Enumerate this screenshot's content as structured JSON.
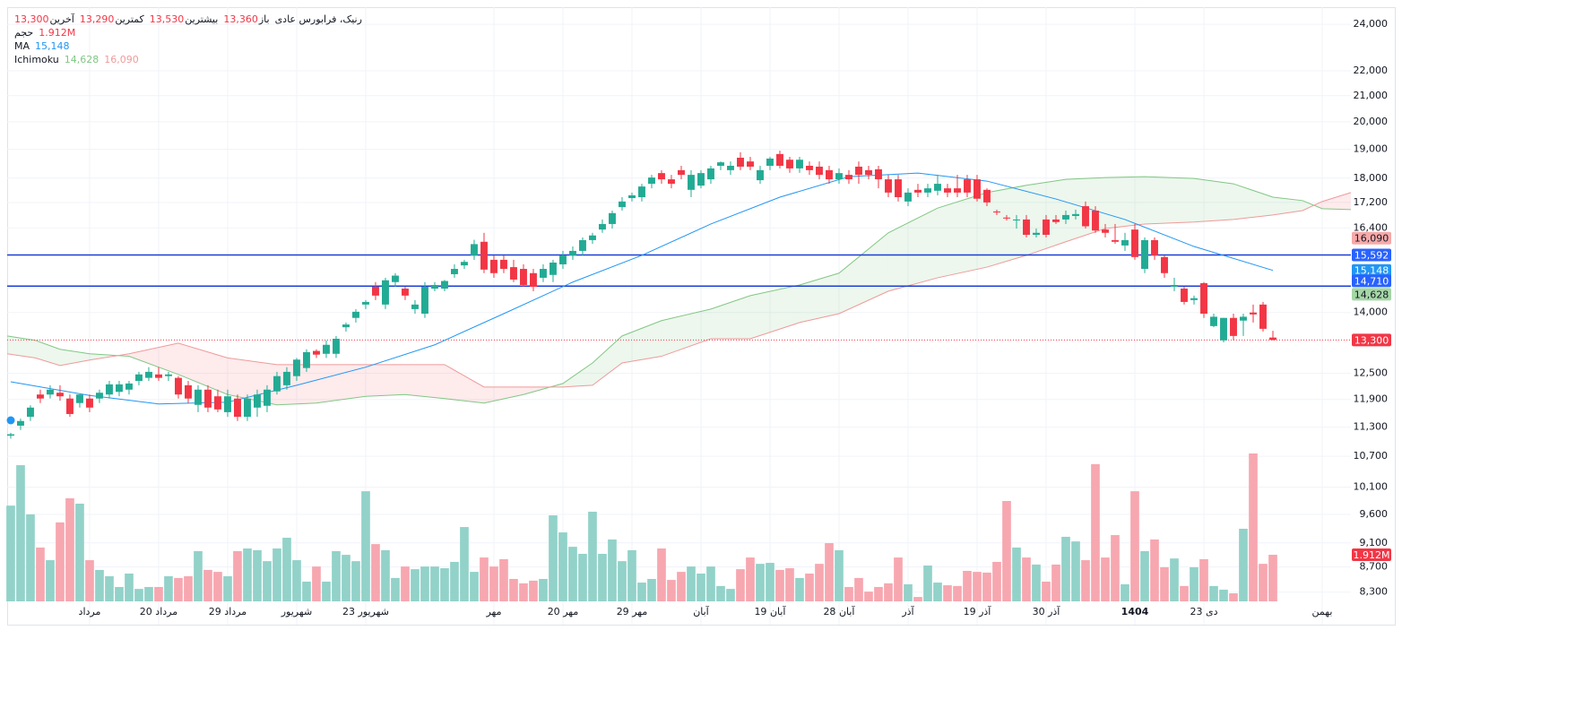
{
  "chart_data": {
    "type": "candlestick",
    "symbol": "رنیک، فرابورس عادی",
    "ohlc_header": [
      {
        "name": "باز",
        "value": 13360,
        "label": "13,360"
      },
      {
        "name": "بیشترین",
        "value": 13530,
        "label": "13,530"
      },
      {
        "name": "کمترین",
        "value": 13290,
        "label": "13,290"
      },
      {
        "name": "آخرین",
        "value": 13300,
        "label": "13,300"
      }
    ],
    "up_color": "#22ab94",
    "down_color": "#f23645",
    "open": [
      11120,
      11330,
      11520,
      12010,
      12010,
      12050,
      11920,
      11820,
      11920,
      11920,
      12010,
      12070,
      12120,
      12320,
      12390,
      12470,
      12430,
      12390,
      12220,
      11780,
      12120,
      11970,
      11620,
      11920,
      11520,
      11720,
      11760,
      12080,
      12220,
      12430,
      12620,
      13030,
      12960,
      12960,
      13620,
      13860,
      14210,
      14690,
      14210,
      14820,
      14640,
      14090,
      13970,
      14640,
      14640,
      15040,
      15290,
      15580,
      15980,
      15450,
      15450,
      15240,
      15190,
      15070,
      14940,
      15020,
      15320,
      15580,
      15710,
      16030,
      16350,
      16520,
      17050,
      17340,
      17370,
      17810,
      18170,
      17960,
      18270,
      17610,
      17750,
      17960,
      18420,
      18270,
      18700,
      18570,
      17930,
      18420,
      18830,
      18630,
      18330,
      18420,
      18390,
      18270,
      17960,
      18110,
      18390,
      18270,
      18300,
      17960,
      17960,
      17230,
      17610,
      17520,
      17580,
      17660,
      17660,
      17960,
      17960,
      17610,
      16910,
      16720,
      16630,
      16660,
      16190,
      16660,
      16660,
      16660,
      16770,
      17080,
      16940,
      16350,
      16030,
      15870,
      16350,
      15190,
      16030,
      15530,
      14690,
      14640,
      14330,
      14790,
      13650,
      13290,
      13860,
      13790,
      14000,
      14210,
      13360
    ],
    "high": [
      11180,
      11480,
      11770,
      12120,
      12220,
      12220,
      12010,
      12010,
      12010,
      12120,
      12320,
      12320,
      12320,
      12530,
      12640,
      12640,
      12530,
      12430,
      12320,
      12220,
      12220,
      12120,
      12120,
      12010,
      12010,
      12120,
      12220,
      12530,
      12640,
      12860,
      13070,
      13070,
      13290,
      13400,
      13740,
      14090,
      14330,
      14820,
      14940,
      15070,
      14690,
      14330,
      14820,
      14820,
      14880,
      15320,
      15450,
      16040,
      16250,
      15580,
      15580,
      15450,
      15320,
      15190,
      15320,
      15450,
      15710,
      15840,
      16110,
      16250,
      16660,
      16940,
      17370,
      17520,
      17810,
      18110,
      18270,
      18110,
      18420,
      18270,
      18270,
      18420,
      18570,
      18570,
      18890,
      18730,
      18420,
      18730,
      18950,
      18730,
      18730,
      18570,
      18570,
      18420,
      18330,
      18270,
      18570,
      18420,
      18420,
      18110,
      18110,
      17660,
      17810,
      17810,
      18110,
      17810,
      18110,
      18110,
      18110,
      17660,
      16970,
      16800,
      16800,
      16800,
      16380,
      16800,
      16800,
      16940,
      16970,
      17230,
      17080,
      16520,
      16520,
      16250,
      16520,
      16110,
      16110,
      15580,
      14940,
      14690,
      14450,
      14820,
      13970,
      13860,
      13970,
      13970,
      14210,
      14280,
      13530
    ],
    "low": [
      11060,
      11240,
      11430,
      11820,
      11920,
      11870,
      11520,
      11720,
      11620,
      11820,
      11920,
      11970,
      12010,
      12220,
      12320,
      12320,
      12320,
      11920,
      11820,
      11620,
      11620,
      11620,
      11520,
      11430,
      11430,
      11520,
      11620,
      12010,
      12120,
      12320,
      12530,
      12860,
      12860,
      12860,
      13510,
      13740,
      14090,
      14330,
      14090,
      14690,
      14330,
      13970,
      13860,
      14570,
      14570,
      14940,
      15190,
      15450,
      15070,
      14940,
      15070,
      14820,
      14690,
      14570,
      14820,
      14820,
      15190,
      15450,
      15580,
      15920,
      16250,
      16380,
      16940,
      17230,
      17230,
      17660,
      17810,
      17660,
      17960,
      17370,
      17660,
      17810,
      18270,
      18110,
      18270,
      18270,
      17810,
      18270,
      18330,
      18180,
      18180,
      18110,
      17960,
      17810,
      17810,
      17810,
      17810,
      17960,
      17660,
      17370,
      17230,
      17080,
      17370,
      17370,
      17430,
      17370,
      17370,
      17370,
      17230,
      17080,
      16800,
      16630,
      16380,
      16110,
      16110,
      16110,
      16520,
      16520,
      16660,
      16380,
      16250,
      16110,
      15920,
      15710,
      15450,
      15070,
      15450,
      14940,
      14570,
      14210,
      14210,
      13860,
      13620,
      13240,
      13290,
      13400,
      13740,
      13510,
      13290
    ],
    "close": [
      11150,
      11430,
      11720,
      11920,
      12120,
      11970,
      11580,
      12010,
      11720,
      12050,
      12240,
      12240,
      12260,
      12470,
      12530,
      12390,
      12470,
      12010,
      11920,
      12120,
      11720,
      11680,
      11970,
      11520,
      11920,
      12010,
      12120,
      12430,
      12530,
      12820,
      13000,
      12940,
      13180,
      13330,
      13690,
      14020,
      14280,
      14450,
      14870,
      15000,
      14450,
      14210,
      14690,
      14740,
      14850,
      15190,
      15390,
      15910,
      15170,
      15070,
      15190,
      14890,
      14740,
      14690,
      15190,
      15370,
      15580,
      15710,
      16030,
      16170,
      16520,
      16860,
      17230,
      17430,
      17720,
      18020,
      17960,
      17810,
      18110,
      18110,
      18170,
      18330,
      18540,
      18420,
      18390,
      18390,
      18270,
      18670,
      18420,
      18330,
      18630,
      18270,
      18110,
      17960,
      18170,
      17960,
      18110,
      18110,
      17960,
      17520,
      17370,
      17520,
      17520,
      17660,
      17810,
      17520,
      17520,
      17520,
      17320,
      17200,
      16880,
      16690,
      16660,
      16190,
      16250,
      16190,
      16580,
      16800,
      16830,
      16450,
      16320,
      16250,
      15980,
      16030,
      15530,
      16030,
      15580,
      15070,
      14740,
      14280,
      14380,
      13970,
      13890,
      13860,
      13400,
      13890,
      13950,
      13580,
      13300
    ],
    "volume": {
      "name": "حجم",
      "last_label": "1.912M",
      "up_color": "#92d2c9",
      "down_color": "#f7a7b0",
      "values": [
        3.93,
        5.59,
        3.57,
        2.21,
        1.69,
        3.24,
        4.23,
        4.01,
        1.69,
        1.29,
        1.03,
        0.59,
        1.14,
        0.51,
        0.59,
        0.59,
        1.03,
        0.96,
        1.03,
        2.06,
        1.29,
        1.21,
        1.03,
        2.06,
        2.17,
        2.1,
        1.65,
        2.17,
        2.61,
        1.69,
        0.81,
        1.43,
        0.81,
        2.06,
        1.91,
        1.65,
        4.52,
        2.35,
        2.1,
        0.96,
        1.43,
        1.32,
        1.43,
        1.43,
        1.36,
        1.62,
        3.05,
        1.21,
        1.8,
        1.43,
        1.73,
        0.92,
        0.74,
        0.85,
        0.92,
        3.53,
        2.83,
        2.24,
        1.95,
        3.68,
        1.95,
        2.54,
        1.65,
        2.1,
        0.77,
        0.92,
        2.17,
        0.88,
        1.21,
        1.43,
        1.14,
        1.43,
        0.63,
        0.51,
        1.32,
        1.8,
        1.54,
        1.58,
        1.29,
        1.36,
        0.96,
        1.14,
        1.54,
        2.39,
        2.1,
        0.59,
        0.96,
        0.4,
        0.59,
        0.74,
        1.8,
        0.7,
        0.18,
        1.47,
        0.77,
        0.66,
        0.63,
        1.25,
        1.21,
        1.18,
        1.62,
        4.12,
        2.21,
        1.8,
        1.51,
        0.81,
        1.51,
        2.65,
        2.46,
        1.69,
        5.63,
        1.8,
        2.72,
        0.7,
        4.52,
        2.06,
        2.54,
        1.4,
        1.76,
        0.63,
        1.4,
        1.73,
        0.63,
        0.48,
        0.33,
        2.98,
        6.07,
        1.54,
        1.912
      ]
    },
    "ma": {
      "name": "MA",
      "color": "#2196f3",
      "last": {
        "value": 15148,
        "label": "15,148"
      },
      "x": [
        0,
        8,
        15,
        22,
        29,
        36,
        43,
        50,
        57,
        64,
        71,
        78,
        85,
        92,
        99,
        106,
        113,
        120,
        128
      ],
      "values": [
        12300,
        11990,
        11800,
        11840,
        12220,
        12640,
        13180,
        13970,
        14820,
        15580,
        16520,
        17370,
        18050,
        18170,
        17900,
        17310,
        16660,
        15840,
        15148
      ]
    },
    "ichimoku": {
      "name": "Ichimoku",
      "up_fill": "rgba(76,175,80,0.1)",
      "down_fill": "rgba(242,54,69,0.1)",
      "x": [
        -0.36,
        2.5,
        5,
        8,
        12,
        17,
        22,
        27,
        31,
        36,
        40,
        44,
        48,
        52,
        56,
        59,
        62,
        66,
        71,
        75,
        80,
        84,
        89,
        94,
        99,
        103,
        107,
        111,
        115,
        120,
        124,
        128,
        131,
        133,
        135.91
      ],
      "span_a": {
        "color": "#81c784",
        "badge_color": "#a5d6a7",
        "last": {
          "value": 14628,
          "label": "14,628"
        },
        "values": [
          13400,
          13290,
          13070,
          12960,
          12900,
          12470,
          12010,
          11780,
          11820,
          11970,
          12010,
          11920,
          11820,
          12010,
          12260,
          12740,
          13400,
          13790,
          14090,
          14450,
          14740,
          15070,
          16250,
          17020,
          17520,
          17760,
          17960,
          18020,
          18050,
          17990,
          17810,
          17370,
          17260,
          17000,
          16970
        ]
      },
      "span_b": {
        "color": "#ef9a9a",
        "badge_color": "#f7a9a9",
        "last": {
          "value": 16090,
          "label": "16,090"
        },
        "values": [
          12960,
          12860,
          12680,
          12810,
          12960,
          13220,
          12860,
          12700,
          12700,
          12700,
          12700,
          12700,
          12180,
          12180,
          12180,
          12220,
          12740,
          12900,
          13330,
          13330,
          13740,
          13970,
          14570,
          14940,
          15240,
          15580,
          15980,
          16380,
          16520,
          16580,
          16660,
          16800,
          16940,
          17230,
          17520
        ]
      }
    },
    "hlines": {
      "color": "#1a3fd6",
      "badge_color": "#2962ff",
      "lines": [
        {
          "value": 15592,
          "label": "15,592"
        },
        {
          "value": 14710,
          "label": "14,710"
        }
      ]
    },
    "log_scale": true,
    "grid": true,
    "xlim": [
      -0.36,
      135.91
    ],
    "xticks": [
      {
        "value": 8,
        "label": "مرداد"
      },
      {
        "value": 15,
        "label": "20 مرداد"
      },
      {
        "value": 22,
        "label": "29 مرداد"
      },
      {
        "value": 29,
        "label": "شهریور"
      },
      {
        "value": 36,
        "label": "23 شهریور"
      },
      {
        "value": 49,
        "label": "مهر"
      },
      {
        "value": 56,
        "label": "20 مهر"
      },
      {
        "value": 63,
        "label": "29 مهر"
      },
      {
        "value": 70,
        "label": "آبان"
      },
      {
        "value": 77,
        "label": "19 آبان"
      },
      {
        "value": 84,
        "label": "28 آبان"
      },
      {
        "value": 91,
        "label": "آذر"
      },
      {
        "value": 98,
        "label": "19 آذر"
      },
      {
        "value": 105,
        "label": "30 آذر"
      },
      {
        "value": 114,
        "label": "1404",
        "bold": true
      },
      {
        "value": 121,
        "label": "23 دی"
      },
      {
        "value": 133,
        "label": "بهمن"
      }
    ],
    "ylim": [
      7810,
      24780
    ],
    "yticks": [
      {
        "value": 24000,
        "label": "24,000"
      },
      {
        "value": 22000,
        "label": "22,000"
      },
      {
        "value": 21000,
        "label": "21,000"
      },
      {
        "value": 20000,
        "label": "20,000"
      },
      {
        "value": 19000,
        "label": "19,000"
      },
      {
        "value": 18000,
        "label": "18,000"
      },
      {
        "value": 17200,
        "label": "17,200"
      },
      {
        "value": 16400,
        "label": "16,400"
      },
      {
        "value": 14000,
        "label": "14,000"
      },
      {
        "value": 12500,
        "label": "12,500"
      },
      {
        "value": 11900,
        "label": "11,900"
      },
      {
        "value": 11300,
        "label": "11,300"
      },
      {
        "value": 10700,
        "label": "10,700"
      },
      {
        "value": 10100,
        "label": "10,100"
      },
      {
        "value": 9600,
        "label": "9,600"
      },
      {
        "value": 9100,
        "label": "9,100"
      },
      {
        "value": 8700,
        "label": "8,700"
      },
      {
        "value": 8300,
        "label": "8,300"
      }
    ]
  }
}
